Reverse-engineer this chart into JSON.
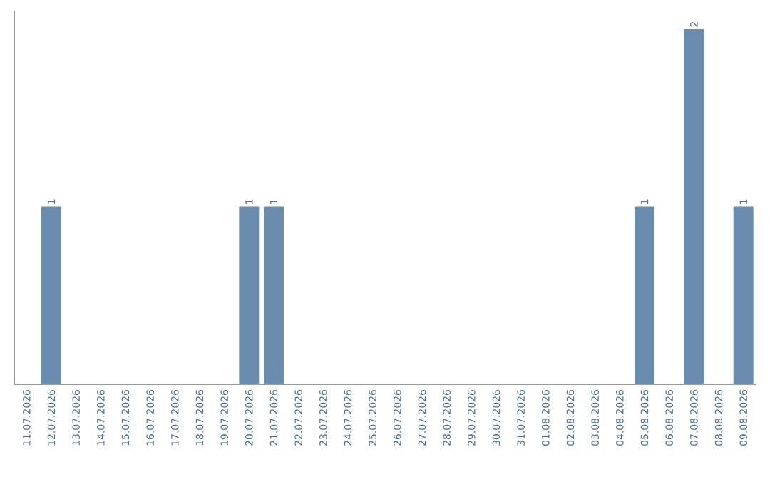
{
  "chart_data": {
    "type": "bar",
    "categories": [
      "11.07.2026",
      "12.07.2026",
      "13.07.2026",
      "14.07.2026",
      "15.07.2026",
      "16.07.2026",
      "17.07.2026",
      "18.07.2026",
      "19.07.2026",
      "20.07.2026",
      "21.07.2026",
      "22.07.2026",
      "23.07.2026",
      "24.07.2026",
      "25.07.2026",
      "26.07.2026",
      "27.07.2026",
      "28.07.2026",
      "29.07.2026",
      "30.07.2026",
      "31.07.2026",
      "01.08.2026",
      "02.08.2026",
      "03.08.2026",
      "04.08.2026",
      "05.08.2026",
      "06.08.2026",
      "07.08.2026",
      "08.08.2026",
      "09.08.2026"
    ],
    "values": [
      0,
      1,
      0,
      0,
      0,
      0,
      0,
      0,
      0,
      1,
      1,
      0,
      0,
      0,
      0,
      0,
      0,
      0,
      0,
      0,
      0,
      0,
      0,
      0,
      0,
      1,
      0,
      2,
      0,
      1
    ],
    "value_labels": [
      null,
      "1",
      null,
      null,
      null,
      null,
      null,
      null,
      null,
      "1",
      "1",
      null,
      null,
      null,
      null,
      null,
      null,
      null,
      null,
      null,
      null,
      null,
      null,
      null,
      null,
      "1",
      null,
      "2",
      null,
      "1"
    ],
    "color": "#6a8caf",
    "ylim": [
      0,
      2.1
    ]
  }
}
